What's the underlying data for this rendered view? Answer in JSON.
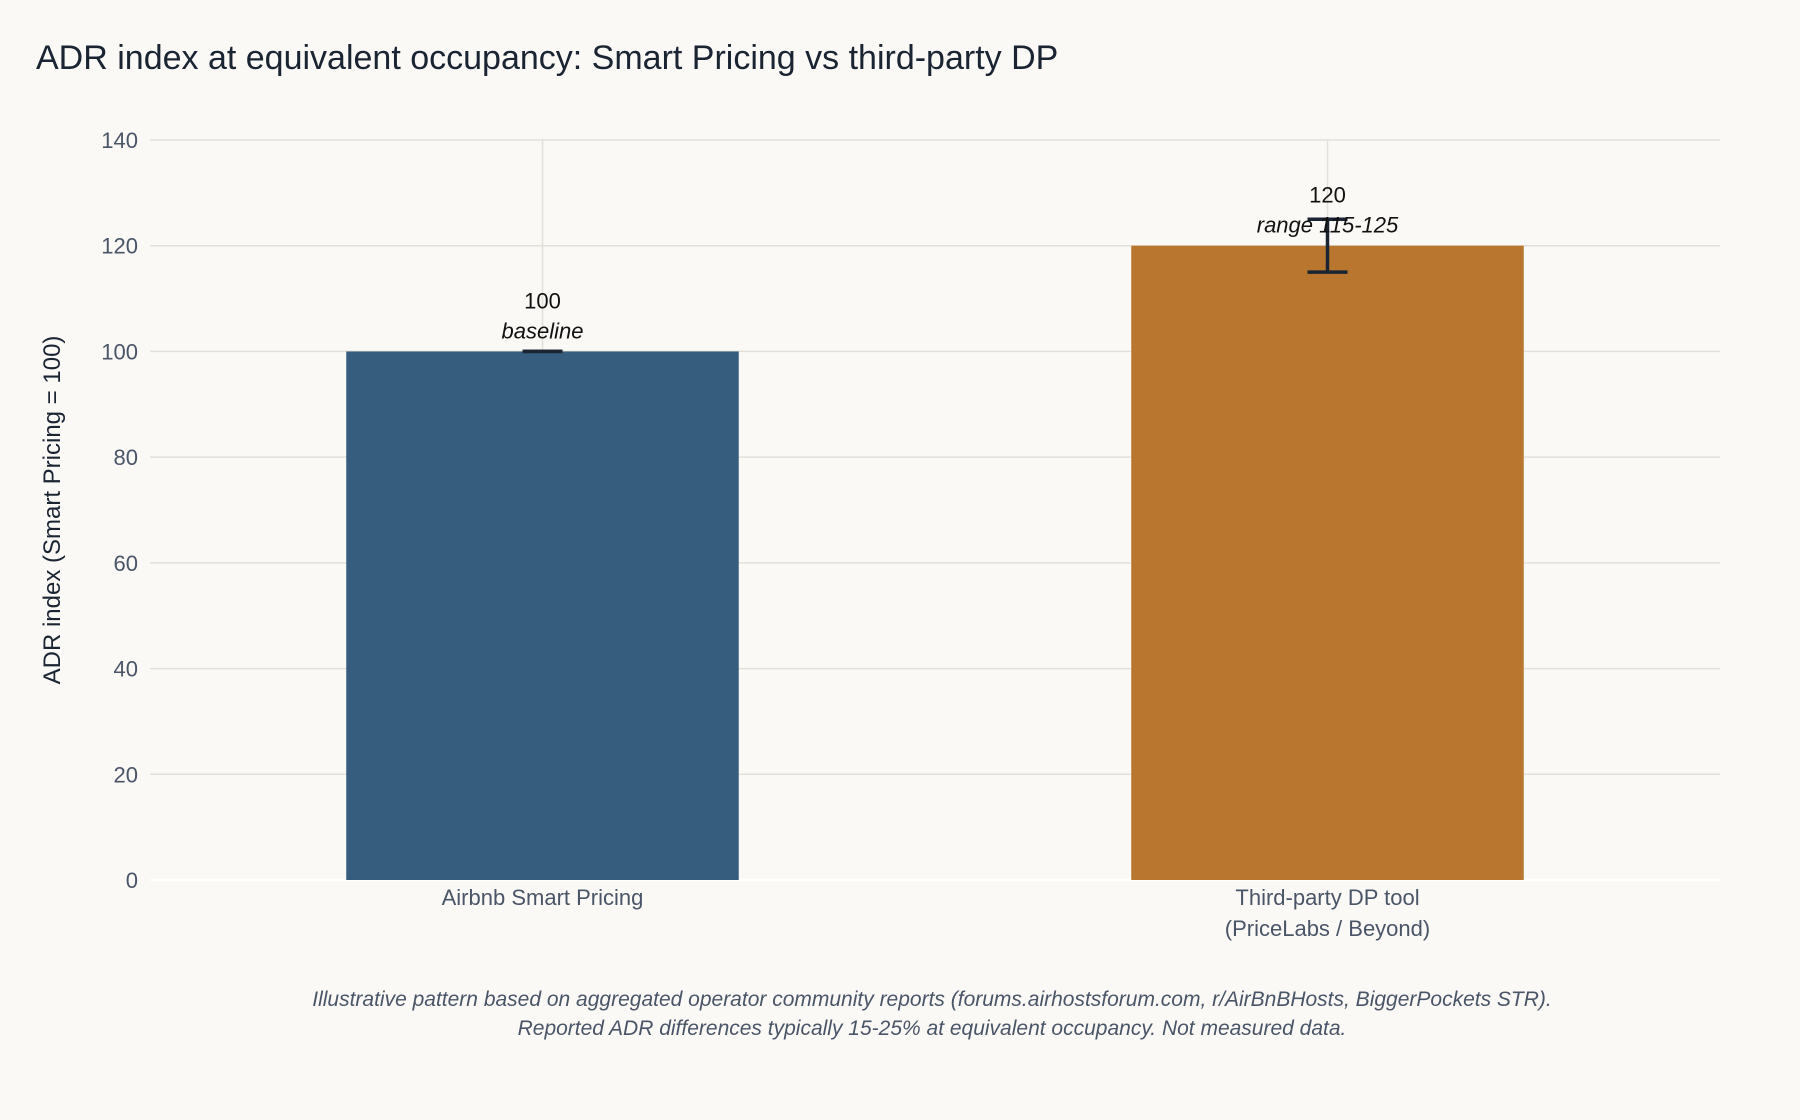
{
  "chart_data": {
    "type": "bar",
    "title": "ADR index at equivalent occupancy: Smart Pricing vs third-party DP",
    "ylabel": "ADR index (Smart Pricing = 100)",
    "xlabel": "",
    "ylim": [
      0,
      140
    ],
    "yticks": [
      0,
      20,
      40,
      60,
      80,
      100,
      120,
      140
    ],
    "grid": true,
    "categories": [
      [
        "Airbnb Smart Pricing"
      ],
      [
        "Third-party DP tool",
        "(PriceLabs / Beyond)"
      ]
    ],
    "values": [
      100,
      120
    ],
    "value_labels": [
      "100",
      "120"
    ],
    "sub_labels": [
      "baseline",
      "range 115-125"
    ],
    "error_low": [
      100,
      115
    ],
    "error_high": [
      100,
      125
    ],
    "colors": [
      "#365d7d",
      "#b8762e"
    ],
    "notes": [
      "Illustrative pattern based on aggregated operator community reports (forums.airhostsforum.com, r/AirBnBHosts, BiggerPockets STR).",
      "Reported ADR differences typically 15-25% at equivalent occupancy. Not measured data."
    ]
  }
}
